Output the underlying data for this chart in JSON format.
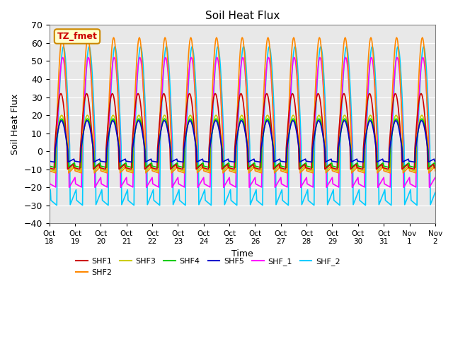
{
  "title": "Soil Heat Flux",
  "xlabel": "Time",
  "ylabel": "Soil Heat Flux",
  "n_days": 15,
  "ylim": [
    -40,
    70
  ],
  "yticks": [
    -40,
    -30,
    -20,
    -10,
    0,
    10,
    20,
    30,
    40,
    50,
    60,
    70
  ],
  "background_color": "#e8e8e8",
  "legend_label": "TZ_fmet",
  "series_order": [
    "SHF_2",
    "SHF_1",
    "SHF2",
    "SHF3",
    "SHF4",
    "SHF1",
    "SHF5"
  ],
  "series": {
    "SHF1": {
      "color": "#cc0000",
      "amplitude": 32,
      "night_min": -10,
      "phase_shift": 0.05
    },
    "SHF2": {
      "color": "#ff8800",
      "amplitude": 63,
      "night_min": -12,
      "phase_shift": 0.0
    },
    "SHF3": {
      "color": "#cccc00",
      "amplitude": 20,
      "night_min": -11,
      "phase_shift": 0.02
    },
    "SHF4": {
      "color": "#00cc00",
      "amplitude": 18,
      "night_min": -9,
      "phase_shift": 0.02
    },
    "SHF5": {
      "color": "#0000cc",
      "amplitude": 17,
      "night_min": -6,
      "phase_shift": 0.03
    },
    "SHF_1": {
      "color": "#ff00ff",
      "amplitude": 52,
      "night_min": -20,
      "phase_shift": -0.02
    },
    "SHF_2": {
      "color": "#00ccff",
      "amplitude": 58,
      "night_min": -30,
      "phase_shift": -0.05
    }
  },
  "x_tick_labels": [
    "Oct\n18",
    "Oct\n19",
    "Oct\n20",
    "Oct\n21",
    "Oct\n22",
    "Oct\n23",
    "Oct\n24",
    "Oct\n25",
    "Oct\n26",
    "Oct\n27",
    "Oct\n28",
    "Oct\n29",
    "Oct\n30",
    "Oct\n31",
    "Nov\n1",
    "Nov\n2"
  ],
  "figsize": [
    6.4,
    4.8
  ],
  "dpi": 100
}
